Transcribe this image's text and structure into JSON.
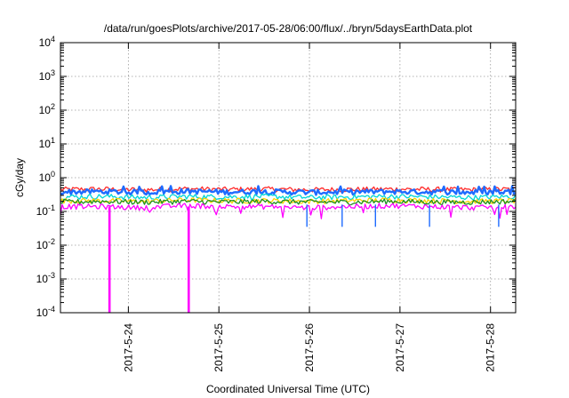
{
  "chart_data": {
    "type": "line",
    "title": "/data/run/goesPlots/archive/2017-05-28/06:00/flux/../bryn/5daysEarthData.plot",
    "xlabel": "Coordinated Universal Time (UTC)",
    "ylabel": "cGy/day",
    "y_scale": "log",
    "ylim": [
      0.0001,
      10000
    ],
    "y_ticks": [
      {
        "value": 0.0001,
        "base": "10",
        "exp": "-4"
      },
      {
        "value": 0.001,
        "base": "10",
        "exp": "-3"
      },
      {
        "value": 0.01,
        "base": "10",
        "exp": "-2"
      },
      {
        "value": 0.1,
        "base": "10",
        "exp": "-1"
      },
      {
        "value": 1,
        "base": "10",
        "exp": "0"
      },
      {
        "value": 10,
        "base": "10",
        "exp": "1"
      },
      {
        "value": 100,
        "base": "10",
        "exp": "2"
      },
      {
        "value": 1000,
        "base": "10",
        "exp": "3"
      },
      {
        "value": 10000,
        "base": "10",
        "exp": "4"
      }
    ],
    "xlim": [
      "2017-05-23 06:00",
      "2017-05-28 06:00"
    ],
    "x_ticks": [
      "2017-5-24",
      "2017-5-25",
      "2017-5-26",
      "2017-5-27",
      "2017-5-28"
    ],
    "grid": true,
    "series": [
      {
        "color": "#ff2a2a",
        "values": [
          0.45,
          0.46,
          0.44,
          0.47,
          0.45,
          0.46,
          0.44,
          0.45,
          0.46,
          0.45,
          0.44,
          0.46
        ]
      },
      {
        "color": "#1e6bff",
        "values": [
          0.38,
          0.39,
          0.37,
          0.4,
          0.38,
          0.39,
          0.37,
          0.38,
          0.39,
          0.38,
          0.37,
          0.39
        ]
      },
      {
        "color": "#00d6d6",
        "values": [
          0.27,
          0.28,
          0.26,
          0.28,
          0.27,
          0.28,
          0.26,
          0.27,
          0.28,
          0.27,
          0.26,
          0.28
        ]
      },
      {
        "color": "#ffd400",
        "values": [
          0.21,
          0.21,
          0.2,
          0.22,
          0.21,
          0.21,
          0.2,
          0.21,
          0.22,
          0.21,
          0.2,
          0.21
        ]
      },
      {
        "color": "#1f8f1f",
        "values": [
          0.19,
          0.2,
          0.19,
          0.2,
          0.19,
          0.2,
          0.19,
          0.19,
          0.2,
          0.19,
          0.19,
          0.2
        ]
      },
      {
        "color": "#ff00ff",
        "values": [
          0.14,
          0.14,
          0.13,
          0.15,
          0.14,
          0.14,
          0.13,
          0.14,
          0.15,
          0.14,
          0.13,
          0.14
        ],
        "dropouts": [
          {
            "time": "2017-05-23 19:00",
            "value": 0.0001
          },
          {
            "time": "2017-05-24 16:00",
            "value": 0.0001
          }
        ]
      }
    ]
  }
}
